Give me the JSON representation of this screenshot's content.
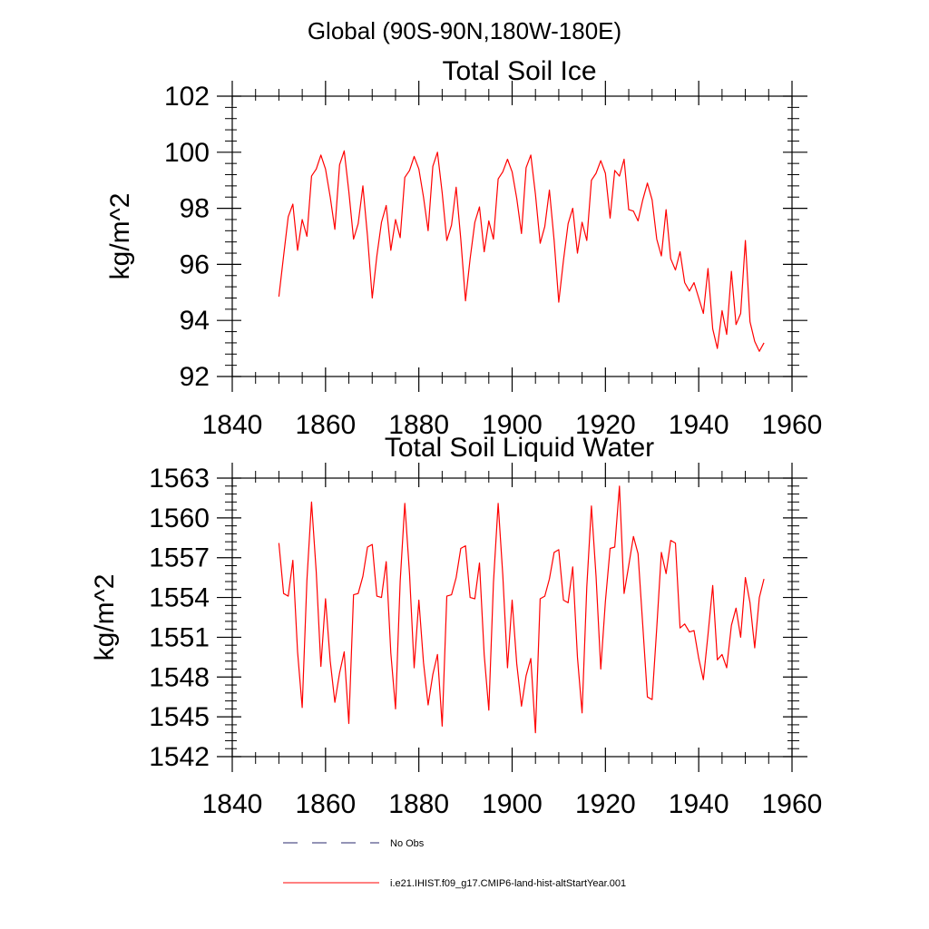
{
  "page_title": "Global (90S-90N,180W-180E)",
  "colors": {
    "model": "#ff0000",
    "obs": "#2a2a6e",
    "axes": "#000000"
  },
  "legend": [
    {
      "name": "No Obs",
      "style": "dashed",
      "color": "#2a2a6e"
    },
    {
      "name": "i.e21.IHIST.f09_g17.CMIP6-land-hist-altStartYear.001",
      "style": "solid",
      "color": "#ff0000"
    }
  ],
  "chart_data": [
    {
      "type": "line",
      "title": "Total Soil Ice",
      "xlabel": "",
      "ylabel": "kg/m^2",
      "xlim": [
        1840,
        1960
      ],
      "ylim": [
        92,
        102
      ],
      "x_ticks": [
        1840,
        1860,
        1880,
        1900,
        1920,
        1940,
        1960
      ],
      "y_ticks": [
        92,
        94,
        96,
        98,
        100,
        102
      ],
      "grid": false,
      "x": [
        1850,
        1851,
        1852,
        1853,
        1854,
        1855,
        1856,
        1857,
        1858,
        1859,
        1860,
        1861,
        1862,
        1863,
        1864,
        1865,
        1866,
        1867,
        1868,
        1869,
        1870,
        1871,
        1872,
        1873,
        1874,
        1875,
        1876,
        1877,
        1878,
        1879,
        1880,
        1881,
        1882,
        1883,
        1884,
        1885,
        1886,
        1887,
        1888,
        1889,
        1890,
        1891,
        1892,
        1893,
        1894,
        1895,
        1896,
        1897,
        1898,
        1899,
        1900,
        1901,
        1902,
        1903,
        1904,
        1905,
        1906,
        1907,
        1908,
        1909,
        1910,
        1911,
        1912,
        1913,
        1914,
        1915,
        1916,
        1917,
        1918,
        1919,
        1920,
        1921,
        1922,
        1923,
        1924,
        1925,
        1926,
        1927,
        1928,
        1929,
        1930,
        1931,
        1932,
        1933,
        1934,
        1935,
        1936,
        1937,
        1938,
        1939,
        1940,
        1941,
        1942,
        1943,
        1944,
        1945,
        1946,
        1947,
        1948,
        1949,
        1950,
        1951,
        1952,
        1953,
        1954
      ],
      "series": [
        {
          "name": "i.e21.IHIST.f09_g17.CMIP6-land-hist-altStartYear.001",
          "values": [
            94.85,
            96.3,
            97.7,
            98.15,
            96.5,
            97.6,
            97.0,
            99.15,
            99.4,
            99.9,
            99.4,
            98.4,
            97.25,
            99.55,
            100.05,
            98.6,
            96.9,
            97.45,
            98.8,
            97.0,
            94.8,
            96.3,
            97.5,
            98.1,
            96.5,
            97.6,
            96.95,
            99.1,
            99.35,
            99.85,
            99.4,
            98.4,
            97.2,
            99.5,
            100.0,
            98.55,
            96.85,
            97.4,
            98.75,
            96.9,
            94.7,
            96.2,
            97.5,
            98.05,
            96.45,
            97.55,
            96.9,
            99.05,
            99.3,
            99.75,
            99.3,
            98.35,
            97.1,
            99.45,
            99.9,
            98.5,
            96.75,
            97.35,
            98.65,
            96.85,
            94.65,
            96.15,
            97.45,
            98.0,
            96.4,
            97.5,
            96.85,
            99.0,
            99.25,
            99.7,
            99.25,
            97.65,
            99.35,
            99.15,
            99.75,
            97.95,
            97.9,
            97.55,
            98.3,
            98.9,
            98.3,
            96.9,
            96.3,
            97.95,
            96.2,
            95.8,
            96.45,
            95.35,
            95.05,
            95.35,
            94.8,
            94.25,
            95.85,
            93.7,
            93.0,
            94.35,
            93.5,
            95.75,
            93.85,
            94.25,
            96.85,
            93.95,
            93.25,
            92.9,
            93.2
          ]
        }
      ]
    },
    {
      "type": "line",
      "title": "Total Soil Liquid Water",
      "xlabel": "",
      "ylabel": "kg/m^2",
      "xlim": [
        1840,
        1960
      ],
      "ylim": [
        1542,
        1563
      ],
      "x_ticks": [
        1840,
        1860,
        1880,
        1900,
        1920,
        1940,
        1960
      ],
      "y_ticks": [
        1542,
        1545,
        1548,
        1551,
        1554,
        1557,
        1560,
        1563
      ],
      "grid": false,
      "x": [
        1850,
        1851,
        1852,
        1853,
        1854,
        1855,
        1856,
        1857,
        1858,
        1859,
        1860,
        1861,
        1862,
        1863,
        1864,
        1865,
        1866,
        1867,
        1868,
        1869,
        1870,
        1871,
        1872,
        1873,
        1874,
        1875,
        1876,
        1877,
        1878,
        1879,
        1880,
        1881,
        1882,
        1883,
        1884,
        1885,
        1886,
        1887,
        1888,
        1889,
        1890,
        1891,
        1892,
        1893,
        1894,
        1895,
        1896,
        1897,
        1898,
        1899,
        1900,
        1901,
        1902,
        1903,
        1904,
        1905,
        1906,
        1907,
        1908,
        1909,
        1910,
        1911,
        1912,
        1913,
        1914,
        1915,
        1916,
        1917,
        1918,
        1919,
        1920,
        1921,
        1922,
        1923,
        1924,
        1925,
        1926,
        1927,
        1928,
        1929,
        1930,
        1931,
        1932,
        1933,
        1934,
        1935,
        1936,
        1937,
        1938,
        1939,
        1940,
        1941,
        1942,
        1943,
        1944,
        1945,
        1946,
        1947,
        1948,
        1949,
        1950,
        1951,
        1952,
        1953,
        1954
      ],
      "series": [
        {
          "name": "i.e21.IHIST.f09_g17.CMIP6-land-hist-altStartYear.001",
          "values": [
            1558.1,
            1554.3,
            1554.1,
            1556.8,
            1549.9,
            1545.7,
            1555.3,
            1561.2,
            1555.9,
            1548.8,
            1553.9,
            1549.2,
            1546.1,
            1548.3,
            1549.9,
            1544.5,
            1554.2,
            1554.3,
            1555.6,
            1557.8,
            1558.0,
            1554.1,
            1554.0,
            1556.7,
            1549.8,
            1545.6,
            1555.2,
            1561.1,
            1555.8,
            1548.7,
            1553.8,
            1549.1,
            1545.9,
            1548.2,
            1549.7,
            1544.3,
            1554.1,
            1554.2,
            1555.5,
            1557.7,
            1557.9,
            1554.0,
            1553.9,
            1556.6,
            1549.7,
            1545.5,
            1555.1,
            1561.1,
            1555.7,
            1548.7,
            1553.8,
            1549.0,
            1545.8,
            1548.1,
            1549.4,
            1543.8,
            1553.9,
            1554.1,
            1555.4,
            1557.4,
            1557.6,
            1553.8,
            1553.6,
            1556.3,
            1549.5,
            1545.3,
            1554.8,
            1560.9,
            1555.6,
            1548.6,
            1553.7,
            1557.7,
            1557.8,
            1562.4,
            1554.3,
            1556.4,
            1558.6,
            1557.3,
            1551.9,
            1546.5,
            1546.3,
            1551.7,
            1557.4,
            1555.8,
            1558.3,
            1558.1,
            1551.7,
            1552.0,
            1551.4,
            1551.5,
            1549.4,
            1547.8,
            1551.2,
            1554.9,
            1549.3,
            1549.7,
            1548.7,
            1551.9,
            1553.2,
            1551.0,
            1555.5,
            1553.6,
            1550.2,
            1554.0,
            1555.4
          ]
        }
      ]
    }
  ]
}
